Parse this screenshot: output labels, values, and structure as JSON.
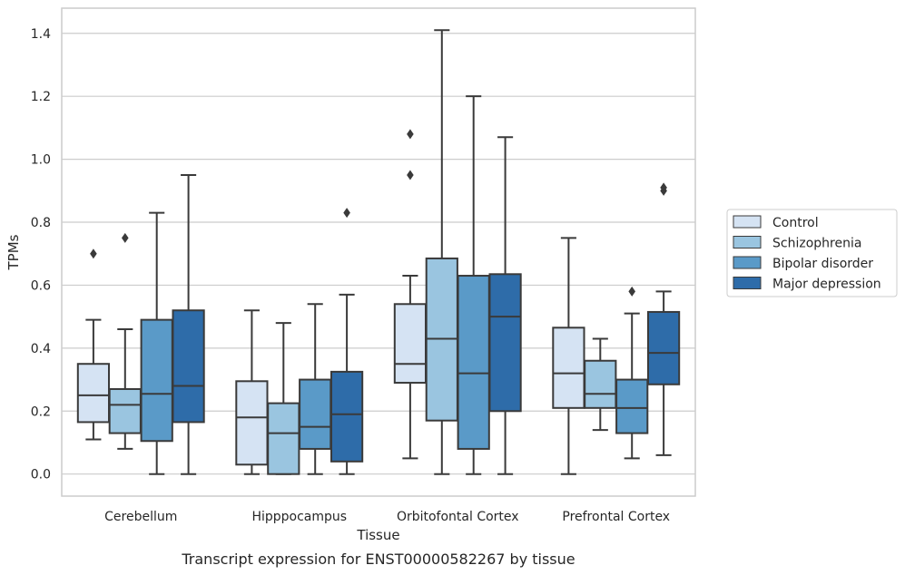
{
  "chart_data": {
    "type": "boxplot",
    "title": "Transcript expression for ENST00000582267 by tissue",
    "xlabel": "Tissue",
    "ylabel": "TPMs",
    "ylim": [
      -0.07,
      1.48
    ],
    "yticks": [
      0.0,
      0.2,
      0.4,
      0.6,
      0.8,
      1.0,
      1.2,
      1.4
    ],
    "ytick_labels": [
      "0.0",
      "0.2",
      "0.4",
      "0.6",
      "0.8",
      "1.0",
      "1.2",
      "1.4"
    ],
    "grid": "horizontal",
    "legend_position": "right",
    "categories": [
      "Cerebellum",
      "Hipppocampus",
      "Orbitofontal Cortex",
      "Prefrontal Cortex"
    ],
    "series": [
      {
        "name": "Control",
        "color": "#d5e3f3",
        "boxes": [
          {
            "whislo": 0.11,
            "q1": 0.165,
            "med": 0.25,
            "q3": 0.35,
            "whishi": 0.49,
            "fliers": [
              0.7
            ]
          },
          {
            "whislo": 0.0,
            "q1": 0.03,
            "med": 0.18,
            "q3": 0.295,
            "whishi": 0.52,
            "fliers": []
          },
          {
            "whislo": 0.05,
            "q1": 0.29,
            "med": 0.35,
            "q3": 0.54,
            "whishi": 0.63,
            "fliers": [
              0.95,
              1.08
            ]
          },
          {
            "whislo": 0.0,
            "q1": 0.21,
            "med": 0.32,
            "q3": 0.465,
            "whishi": 0.75,
            "fliers": []
          }
        ]
      },
      {
        "name": "Schizophrenia",
        "color": "#9ac5e0",
        "boxes": [
          {
            "whislo": 0.08,
            "q1": 0.13,
            "med": 0.22,
            "q3": 0.27,
            "whishi": 0.46,
            "fliers": [
              0.75
            ]
          },
          {
            "whislo": 0.0,
            "q1": 0.0,
            "med": 0.13,
            "q3": 0.225,
            "whishi": 0.48,
            "fliers": []
          },
          {
            "whislo": 0.0,
            "q1": 0.17,
            "med": 0.43,
            "q3": 0.685,
            "whishi": 1.41,
            "fliers": []
          },
          {
            "whislo": 0.14,
            "q1": 0.21,
            "med": 0.255,
            "q3": 0.36,
            "whishi": 0.43,
            "fliers": []
          }
        ]
      },
      {
        "name": "Bipolar disorder",
        "color": "#5a9ac8",
        "boxes": [
          {
            "whislo": 0.0,
            "q1": 0.105,
            "med": 0.255,
            "q3": 0.49,
            "whishi": 0.83,
            "fliers": []
          },
          {
            "whislo": 0.0,
            "q1": 0.08,
            "med": 0.15,
            "q3": 0.3,
            "whishi": 0.54,
            "fliers": []
          },
          {
            "whislo": 0.0,
            "q1": 0.08,
            "med": 0.32,
            "q3": 0.63,
            "whishi": 1.2,
            "fliers": []
          },
          {
            "whislo": 0.05,
            "q1": 0.13,
            "med": 0.21,
            "q3": 0.3,
            "whishi": 0.51,
            "fliers": [
              0.58
            ]
          }
        ]
      },
      {
        "name": "Major depression",
        "color": "#2e6ca9",
        "boxes": [
          {
            "whislo": 0.0,
            "q1": 0.165,
            "med": 0.28,
            "q3": 0.52,
            "whishi": 0.95,
            "fliers": []
          },
          {
            "whislo": 0.0,
            "q1": 0.04,
            "med": 0.19,
            "q3": 0.325,
            "whishi": 0.57,
            "fliers": [
              0.83
            ]
          },
          {
            "whislo": 0.0,
            "q1": 0.2,
            "med": 0.5,
            "q3": 0.635,
            "whishi": 1.07,
            "fliers": []
          },
          {
            "whislo": 0.06,
            "q1": 0.285,
            "med": 0.385,
            "q3": 0.515,
            "whishi": 0.58,
            "fliers": [
              0.9,
              0.91
            ]
          }
        ]
      }
    ]
  }
}
